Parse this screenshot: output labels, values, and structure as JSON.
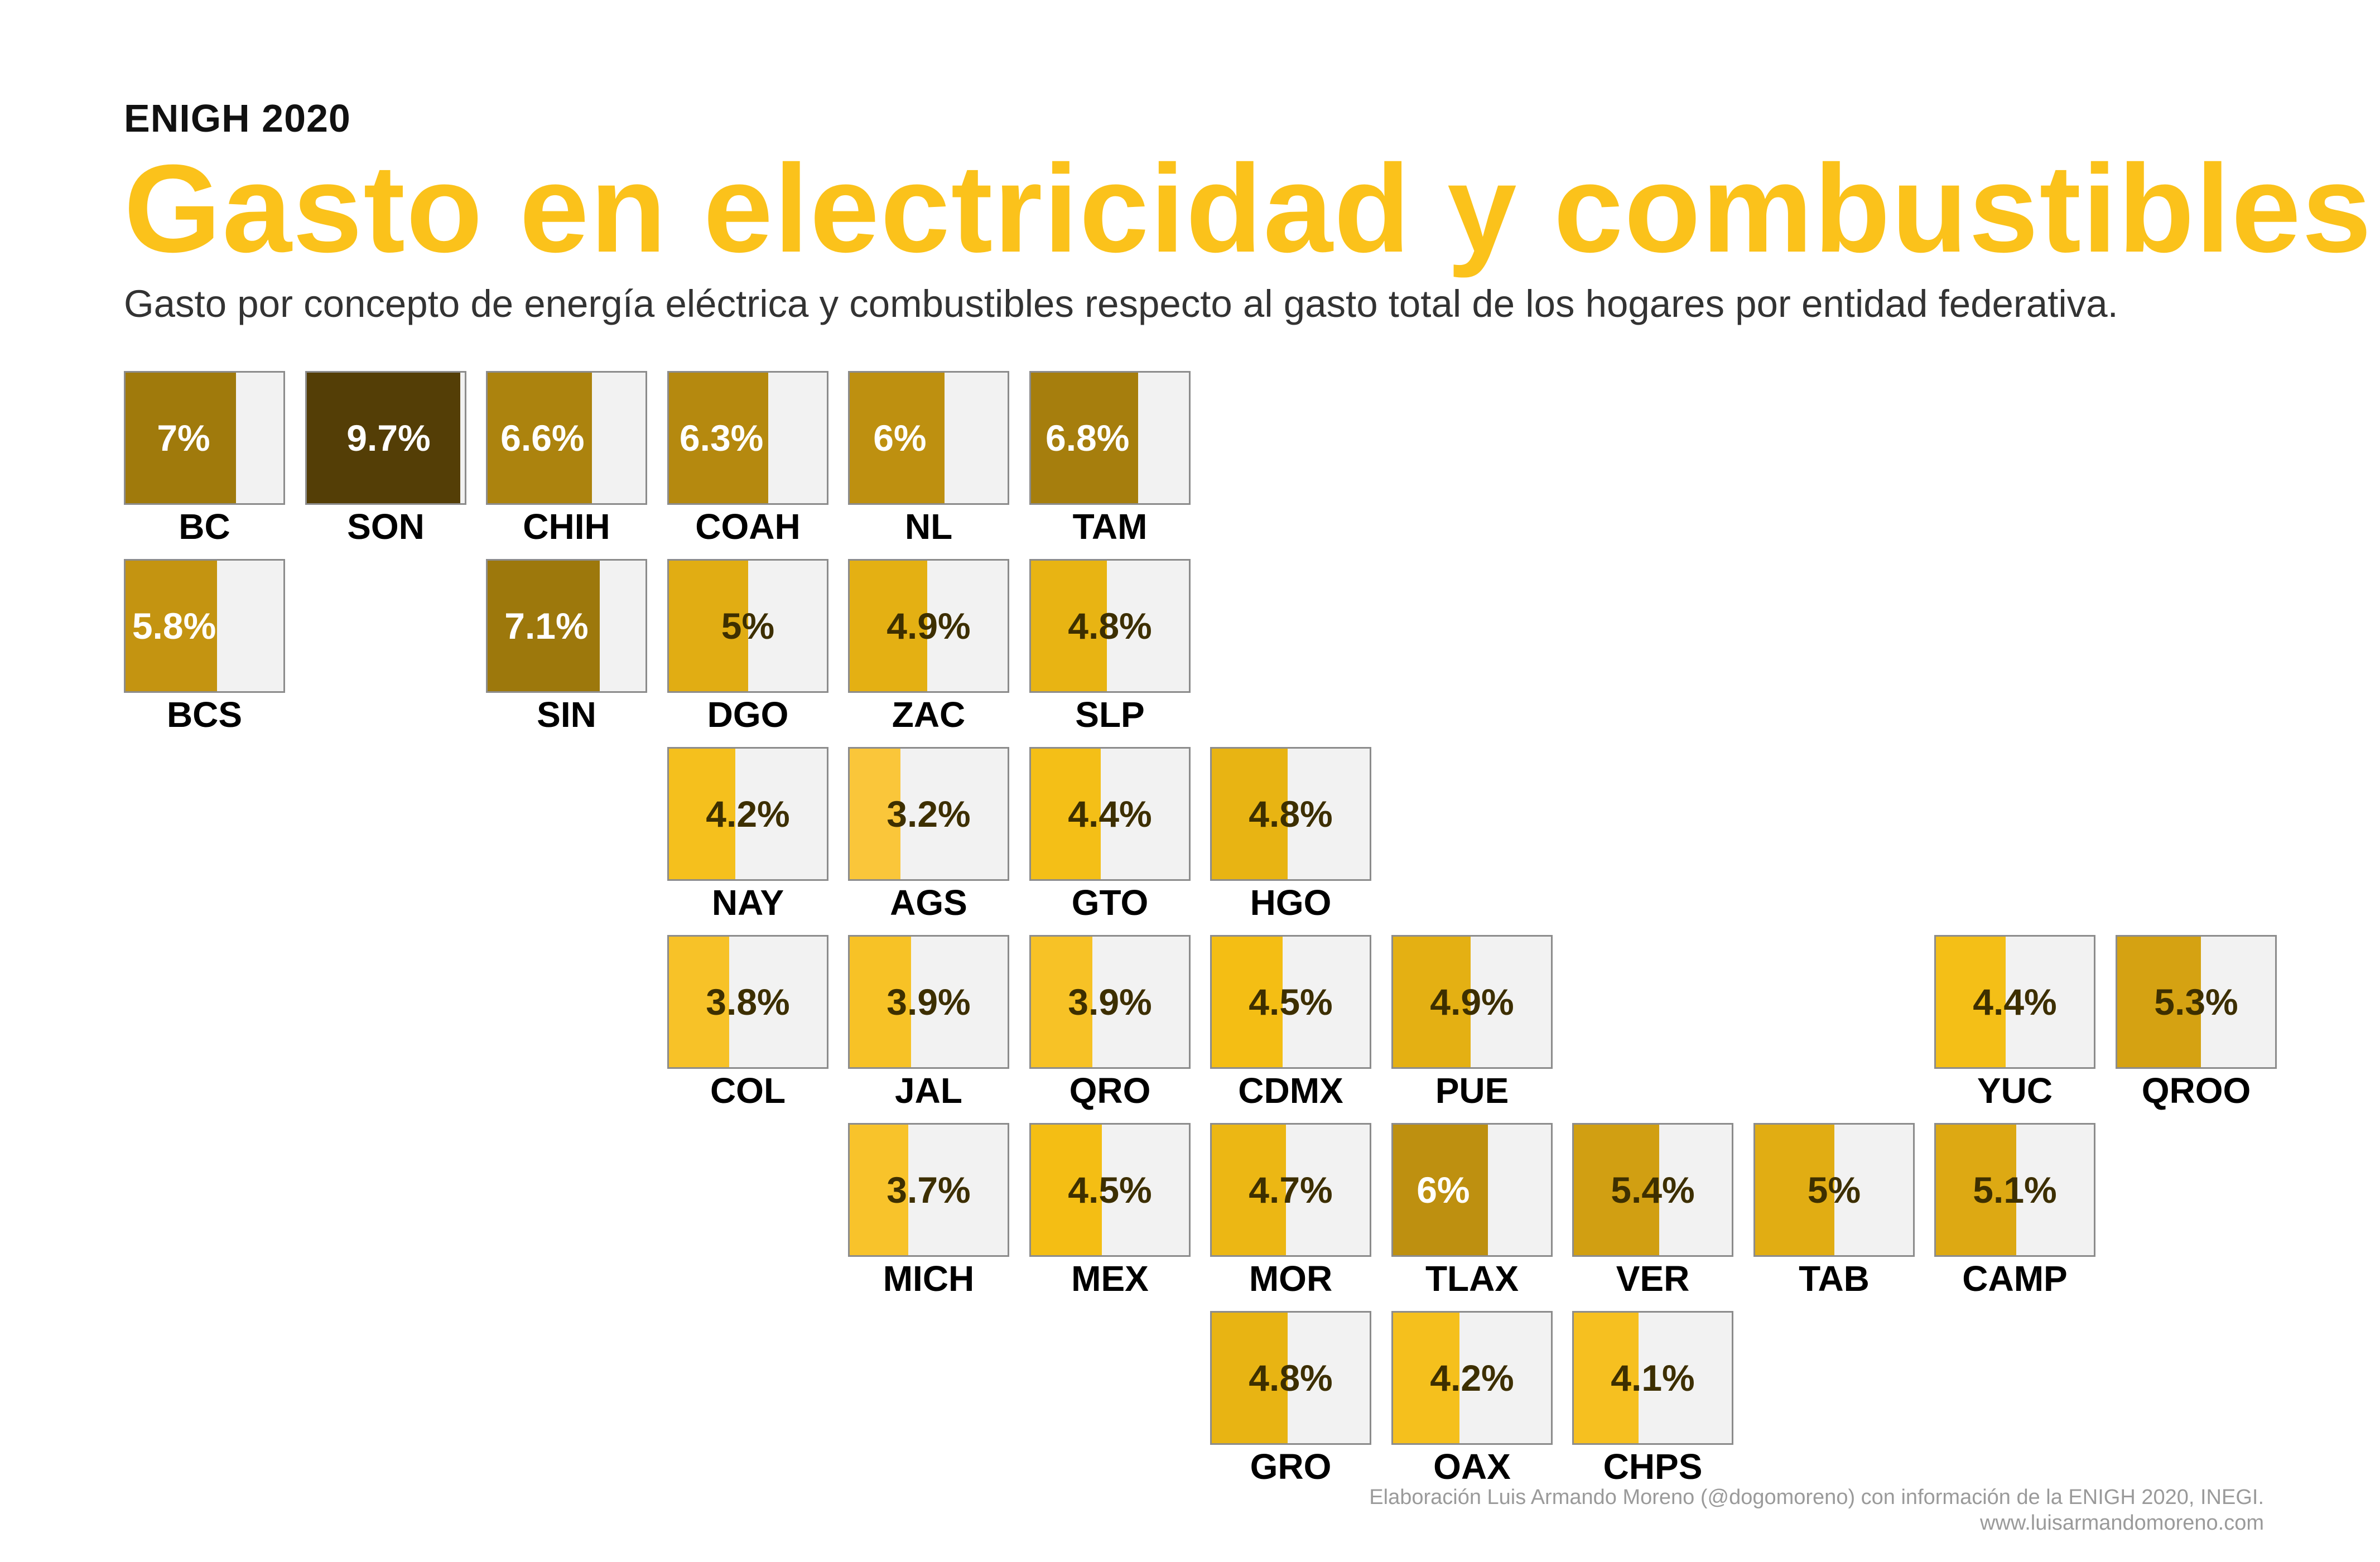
{
  "header": {
    "kicker": "ENIGH 2020",
    "title": "Gasto en electricidad y combustibles",
    "subtitle": "Gasto por concepto de energía eléctrica y combustibles respecto al gasto total de los hogares por entidad federativa."
  },
  "footer": {
    "credit": "Elaboración Luis Armando Moreno (@dogomoreno) con información de la ENIGH 2020, INEGI.",
    "url": "www.luisarmandomoreno.com"
  },
  "chart_data": {
    "type": "heatmap",
    "layout": "tile grid map of Mexican states; bar fill and colour encode the value",
    "value_unit": "%",
    "scale_max": 10,
    "tiles": [
      {
        "state": "BC",
        "label": "7%",
        "value": 7.0,
        "row": 0,
        "col": 0
      },
      {
        "state": "SON",
        "label": "9.7%",
        "value": 9.7,
        "row": 0,
        "col": 1
      },
      {
        "state": "CHIH",
        "label": "6.6%",
        "value": 6.6,
        "row": 0,
        "col": 2
      },
      {
        "state": "COAH",
        "label": "6.3%",
        "value": 6.3,
        "row": 0,
        "col": 3
      },
      {
        "state": "NL",
        "label": "6%",
        "value": 6.0,
        "row": 0,
        "col": 4
      },
      {
        "state": "TAM",
        "label": "6.8%",
        "value": 6.8,
        "row": 0,
        "col": 5
      },
      {
        "state": "BCS",
        "label": "5.8%",
        "value": 5.8,
        "row": 1,
        "col": 0
      },
      {
        "state": "SIN",
        "label": "7.1%",
        "value": 7.1,
        "row": 1,
        "col": 2
      },
      {
        "state": "DGO",
        "label": "5%",
        "value": 5.0,
        "row": 1,
        "col": 3
      },
      {
        "state": "ZAC",
        "label": "4.9%",
        "value": 4.9,
        "row": 1,
        "col": 4
      },
      {
        "state": "SLP",
        "label": "4.8%",
        "value": 4.8,
        "row": 1,
        "col": 5
      },
      {
        "state": "NAY",
        "label": "4.2%",
        "value": 4.2,
        "row": 2,
        "col": 3
      },
      {
        "state": "AGS",
        "label": "3.2%",
        "value": 3.2,
        "row": 2,
        "col": 4
      },
      {
        "state": "GTO",
        "label": "4.4%",
        "value": 4.4,
        "row": 2,
        "col": 5
      },
      {
        "state": "HGO",
        "label": "4.8%",
        "value": 4.8,
        "row": 2,
        "col": 6
      },
      {
        "state": "COL",
        "label": "3.8%",
        "value": 3.8,
        "row": 3,
        "col": 3
      },
      {
        "state": "JAL",
        "label": "3.9%",
        "value": 3.9,
        "row": 3,
        "col": 4
      },
      {
        "state": "QRO",
        "label": "3.9%",
        "value": 3.9,
        "row": 3,
        "col": 5
      },
      {
        "state": "CDMX",
        "label": "4.5%",
        "value": 4.5,
        "row": 3,
        "col": 6
      },
      {
        "state": "PUE",
        "label": "4.9%",
        "value": 4.9,
        "row": 3,
        "col": 7
      },
      {
        "state": "YUC",
        "label": "4.4%",
        "value": 4.4,
        "row": 3,
        "col": 10
      },
      {
        "state": "QROO",
        "label": "5.3%",
        "value": 5.3,
        "row": 3,
        "col": 11
      },
      {
        "state": "MICH",
        "label": "3.7%",
        "value": 3.7,
        "row": 4,
        "col": 4
      },
      {
        "state": "MEX",
        "label": "4.5%",
        "value": 4.5,
        "row": 4,
        "col": 5
      },
      {
        "state": "MOR",
        "label": "4.7%",
        "value": 4.7,
        "row": 4,
        "col": 6
      },
      {
        "state": "TLAX",
        "label": "6%",
        "value": 6.0,
        "row": 4,
        "col": 7
      },
      {
        "state": "VER",
        "label": "5.4%",
        "value": 5.4,
        "row": 4,
        "col": 8
      },
      {
        "state": "TAB",
        "label": "5%",
        "value": 5.0,
        "row": 4,
        "col": 9
      },
      {
        "state": "CAMP",
        "label": "5.1%",
        "value": 5.1,
        "row": 4,
        "col": 10
      },
      {
        "state": "GRO",
        "label": "4.8%",
        "value": 4.8,
        "row": 5,
        "col": 6
      },
      {
        "state": "OAX",
        "label": "4.2%",
        "value": 4.2,
        "row": 5,
        "col": 7
      },
      {
        "state": "CHPS",
        "label": "4.1%",
        "value": 4.1,
        "row": 5,
        "col": 8
      }
    ]
  }
}
